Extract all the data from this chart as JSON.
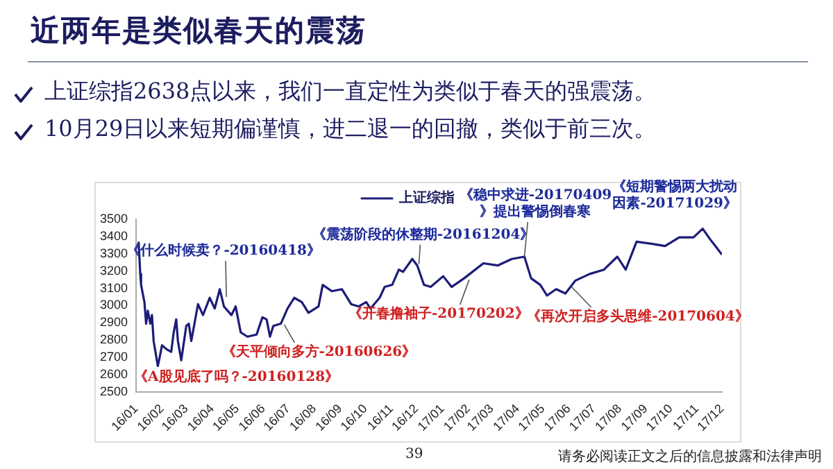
{
  "chart_data": {
    "type": "line",
    "title": "近两年是类似春天的震荡",
    "annotations": [
      "上证综指2638点以来，我们一直定性为类似于春天的强震荡。",
      "10月29日以来短期偏谨慎，进二退一的回撤，类似于前三次。",
      {
        "text": "《A股见底了吗？-20160128》",
        "x": "2016-01-28",
        "y": 2650
      },
      {
        "text": "《什么时候卖？-20160418》",
        "x": "2016-04-18",
        "y": 3050
      },
      {
        "text": "《天平倾向多方-20160626》",
        "x": "2016-06-26",
        "y": 2890
      },
      {
        "text": "《震荡阶段的休整期-20161204》",
        "x": "2016-12-04",
        "y": 3240
      },
      {
        "text": "《开春撸袖子-20170202》",
        "x": "2017-02-02",
        "y": 3150
      },
      {
        "text": "《稳中求进-20170409》提出警惕倒春寒",
        "x": "2017-04-09",
        "y": 3283
      },
      {
        "text": "《再次开启多头思维-20170604》",
        "x": "2017-06-04",
        "y": 3110
      },
      {
        "text": "《短期警惕两大扰动因素-20171029》",
        "x": "2017-10-29",
        "y": 3395
      },
      "39",
      "请务必阅读正文之后的信息披露和法律声明"
    ],
    "x": [
      "2016-01-04",
      "2016-01-05",
      "2016-01-06",
      "2016-01-07",
      "2016-01-11",
      "2016-01-13",
      "2016-01-15",
      "2016-01-18",
      "2016-01-20",
      "2016-01-22",
      "2016-01-27",
      "2016-01-29",
      "2016-02-01",
      "2016-02-07",
      "2016-02-12",
      "2016-02-15",
      "2016-02-18",
      "2016-02-20",
      "2016-02-24",
      "2016-03-01",
      "2016-03-04",
      "2016-03-07",
      "2016-03-15",
      "2016-03-21",
      "2016-03-29",
      "2016-04-04",
      "2016-04-10",
      "2016-04-15",
      "2016-04-24",
      "2016-04-29",
      "2016-05-05",
      "2016-05-13",
      "2016-05-24",
      "2016-05-31",
      "2016-06-05",
      "2016-06-09",
      "2016-06-13",
      "2016-06-22",
      "2016-06-30",
      "2016-07-08",
      "2016-07-17",
      "2016-07-25",
      "2016-08-06",
      "2016-08-11",
      "2016-08-22",
      "2016-09-03",
      "2016-09-14",
      "2016-09-23",
      "2016-10-02",
      "2016-10-07",
      "2016-10-18",
      "2016-10-24",
      "2016-11-02",
      "2016-11-10",
      "2016-11-15",
      "2016-11-26",
      "2016-12-02",
      "2016-12-10",
      "2016-12-18",
      "2017-01-02",
      "2017-01-12",
      "2017-01-27",
      "2017-02-19",
      "2017-03-08",
      "2017-03-25",
      "2017-04-09",
      "2017-04-17",
      "2017-04-28",
      "2017-05-06",
      "2017-05-17",
      "2017-05-28",
      "2017-06-09",
      "2017-06-26",
      "2017-07-13",
      "2017-07-29",
      "2017-08-08",
      "2017-08-21",
      "2017-09-08",
      "2017-09-24",
      "2017-10-11",
      "2017-10-28",
      "2017-11-08",
      "2017-11-17",
      "2017-11-25",
      "2017-12-01"
    ],
    "series": [
      {
        "name": "上证综指",
        "color": "#1c1c78",
        "values": [
          3370,
          3283,
          3183,
          3120,
          3020,
          2895,
          2970,
          2895,
          2945,
          2795,
          2650,
          2695,
          2770,
          2745,
          2732,
          2845,
          2920,
          2795,
          2683,
          2882,
          2895,
          2795,
          3008,
          2945,
          3045,
          2983,
          3095,
          2995,
          2945,
          2995,
          2845,
          2820,
          2832,
          2932,
          2920,
          2820,
          2882,
          2895,
          2983,
          3045,
          3020,
          2958,
          2995,
          3120,
          3083,
          3095,
          3008,
          2995,
          3020,
          2983,
          3045,
          3108,
          3120,
          3208,
          3195,
          3270,
          3232,
          3120,
          3108,
          3170,
          3108,
          3158,
          3245,
          3232,
          3270,
          3283,
          3158,
          3120,
          3058,
          3095,
          3070,
          3145,
          3183,
          3208,
          3283,
          3208,
          3370,
          3358,
          3345,
          3395,
          3395,
          3445,
          3383,
          3333,
          3295
        ]
      }
    ],
    "xlim": [
      "2016-01-01",
      "2017-12-01"
    ],
    "xticks": [
      {
        "value": "2016-01-01",
        "label": "16/01"
      },
      {
        "value": "2016-02-01",
        "label": "16/02"
      },
      {
        "value": "2016-03-01",
        "label": "16/03"
      },
      {
        "value": "2016-04-01",
        "label": "16/04"
      },
      {
        "value": "2016-05-01",
        "label": "16/05"
      },
      {
        "value": "2016-06-01",
        "label": "16/06"
      },
      {
        "value": "2016-07-01",
        "label": "16/07"
      },
      {
        "value": "2016-08-01",
        "label": "16/08"
      },
      {
        "value": "2016-09-01",
        "label": "16/09"
      },
      {
        "value": "2016-10-01",
        "label": "16/10"
      },
      {
        "value": "2016-11-01",
        "label": "16/11"
      },
      {
        "value": "2016-12-01",
        "label": "16/12"
      },
      {
        "value": "2017-01-01",
        "label": "17/01"
      },
      {
        "value": "2017-02-01",
        "label": "17/02"
      },
      {
        "value": "2017-03-01",
        "label": "17/03"
      },
      {
        "value": "2017-04-01",
        "label": "17/04"
      },
      {
        "value": "2017-05-01",
        "label": "17/05"
      },
      {
        "value": "2017-06-01",
        "label": "17/06"
      },
      {
        "value": "2017-07-01",
        "label": "17/07"
      },
      {
        "value": "2017-08-01",
        "label": "17/08"
      },
      {
        "value": "2017-09-01",
        "label": "17/09"
      },
      {
        "value": "2017-10-01",
        "label": "17/10"
      },
      {
        "value": "2017-11-01",
        "label": "17/11"
      },
      {
        "value": "2017-12-01",
        "label": "17/12"
      }
    ],
    "ylim": [
      2500,
      3500
    ],
    "yticks": [
      2500,
      2600,
      2700,
      2800,
      2900,
      3000,
      3100,
      3200,
      3300,
      3400,
      3500
    ],
    "grid": false,
    "legend": "top",
    "marker": "none",
    "line_style": "solid"
  }
}
